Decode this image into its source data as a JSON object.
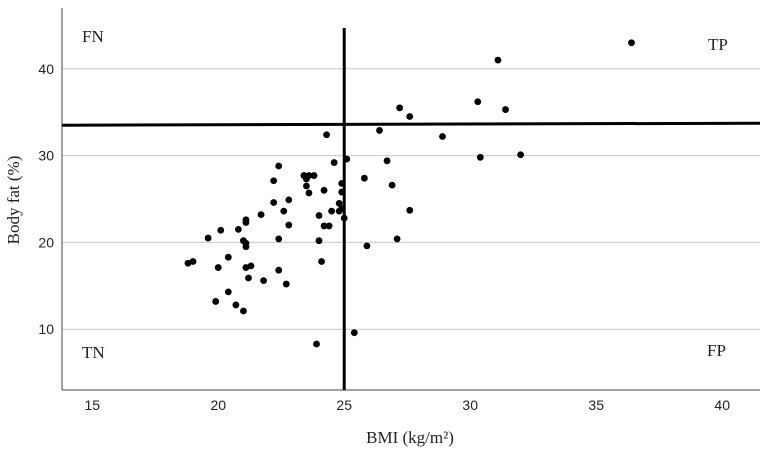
{
  "chart_data": {
    "type": "scatter",
    "xlabel": "BMI (kg/m²)",
    "ylabel": "Body fat (%)",
    "xlim": [
      13.8,
      41.5
    ],
    "ylim": [
      3,
      47
    ],
    "x_ticks": [
      "15",
      "20",
      "25",
      "30",
      "35",
      "40"
    ],
    "y_ticks": [
      "10",
      "20",
      "30",
      "40"
    ],
    "grid": "horizontal",
    "quadrant_labels": {
      "top_left": "FN",
      "top_right": "TP",
      "bottom_left": "TN",
      "bottom_right": "FP"
    },
    "cutoffs": {
      "bmi": 25,
      "body_fat": 33.5
    },
    "point_color": "#000000",
    "points": [
      {
        "x": 36.4,
        "y": 43.0
      },
      {
        "x": 31.1,
        "y": 41.0
      },
      {
        "x": 30.3,
        "y": 36.2
      },
      {
        "x": 31.4,
        "y": 35.3
      },
      {
        "x": 27.2,
        "y": 35.5
      },
      {
        "x": 27.6,
        "y": 34.5
      },
      {
        "x": 24.3,
        "y": 32.4
      },
      {
        "x": 26.4,
        "y": 32.9
      },
      {
        "x": 28.9,
        "y": 32.2
      },
      {
        "x": 32.0,
        "y": 30.1
      },
      {
        "x": 30.4,
        "y": 29.8
      },
      {
        "x": 25.1,
        "y": 29.6
      },
      {
        "x": 24.6,
        "y": 29.2
      },
      {
        "x": 26.7,
        "y": 29.4
      },
      {
        "x": 22.4,
        "y": 28.8
      },
      {
        "x": 23.4,
        "y": 27.7
      },
      {
        "x": 23.6,
        "y": 27.7
      },
      {
        "x": 23.8,
        "y": 27.7
      },
      {
        "x": 23.5,
        "y": 27.3
      },
      {
        "x": 25.8,
        "y": 27.4
      },
      {
        "x": 22.2,
        "y": 27.1
      },
      {
        "x": 23.5,
        "y": 26.5
      },
      {
        "x": 24.9,
        "y": 26.8
      },
      {
        "x": 26.9,
        "y": 26.6
      },
      {
        "x": 24.2,
        "y": 26.0
      },
      {
        "x": 23.6,
        "y": 25.7
      },
      {
        "x": 24.9,
        "y": 25.8
      },
      {
        "x": 22.8,
        "y": 24.9
      },
      {
        "x": 22.2,
        "y": 24.6
      },
      {
        "x": 24.8,
        "y": 24.5
      },
      {
        "x": 24.9,
        "y": 23.9
      },
      {
        "x": 24.5,
        "y": 23.6
      },
      {
        "x": 24.8,
        "y": 23.6
      },
      {
        "x": 22.6,
        "y": 23.6
      },
      {
        "x": 27.6,
        "y": 23.7
      },
      {
        "x": 24.0,
        "y": 23.1
      },
      {
        "x": 21.7,
        "y": 23.2
      },
      {
        "x": 25.0,
        "y": 22.8
      },
      {
        "x": 21.1,
        "y": 22.6
      },
      {
        "x": 21.1,
        "y": 22.3
      },
      {
        "x": 22.8,
        "y": 22.0
      },
      {
        "x": 24.2,
        "y": 21.9
      },
      {
        "x": 24.4,
        "y": 21.9
      },
      {
        "x": 20.1,
        "y": 21.4
      },
      {
        "x": 20.8,
        "y": 21.5
      },
      {
        "x": 19.6,
        "y": 20.5
      },
      {
        "x": 22.4,
        "y": 20.4
      },
      {
        "x": 27.1,
        "y": 20.4
      },
      {
        "x": 21.0,
        "y": 20.2
      },
      {
        "x": 21.1,
        "y": 19.9
      },
      {
        "x": 24.0,
        "y": 20.2
      },
      {
        "x": 21.1,
        "y": 19.5
      },
      {
        "x": 25.9,
        "y": 19.6
      },
      {
        "x": 20.4,
        "y": 18.3
      },
      {
        "x": 18.8,
        "y": 17.6
      },
      {
        "x": 19.0,
        "y": 17.8
      },
      {
        "x": 24.1,
        "y": 17.8
      },
      {
        "x": 20.0,
        "y": 17.1
      },
      {
        "x": 21.1,
        "y": 17.1
      },
      {
        "x": 21.3,
        "y": 17.3
      },
      {
        "x": 22.4,
        "y": 16.8
      },
      {
        "x": 21.2,
        "y": 15.9
      },
      {
        "x": 21.8,
        "y": 15.6
      },
      {
        "x": 22.7,
        "y": 15.2
      },
      {
        "x": 20.4,
        "y": 14.3
      },
      {
        "x": 19.9,
        "y": 13.2
      },
      {
        "x": 20.7,
        "y": 12.8
      },
      {
        "x": 21.0,
        "y": 12.1
      },
      {
        "x": 25.4,
        "y": 9.6
      },
      {
        "x": 23.9,
        "y": 8.3
      }
    ]
  }
}
